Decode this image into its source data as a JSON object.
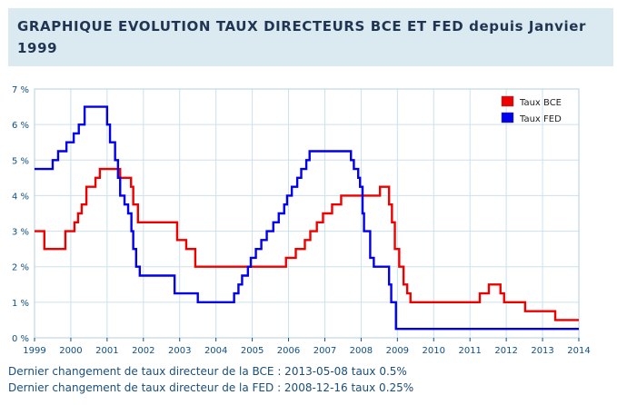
{
  "page_title": "GRAPHIQUE EVOLUTION TAUX DIRECTEURS BCE ET FED depuis Janvier 1999",
  "footer": {
    "bce_line": "Dernier changement de taux directeur de la BCE : 2013-05-08 taux 0.5%",
    "fed_line": "Dernier changement de taux directeur de la FED : 2008-12-16 taux 0.25%"
  },
  "chart_data": {
    "type": "line",
    "title": "",
    "xlabel": "",
    "ylabel": "",
    "xlim": [
      1999,
      2014
    ],
    "ylim": [
      0,
      7
    ],
    "x_ticks": [
      1999,
      2000,
      2001,
      2002,
      2003,
      2004,
      2005,
      2006,
      2007,
      2008,
      2009,
      2010,
      2011,
      2012,
      2013,
      2014
    ],
    "x_tick_labels": [
      "1999",
      "2000",
      "2001",
      "2002",
      "2003",
      "2004",
      "2005",
      "2006",
      "2007",
      "2008",
      "2009",
      "2010",
      "2011",
      "2012",
      "2013",
      "2014"
    ],
    "y_ticks": [
      0,
      1,
      2,
      3,
      4,
      5,
      6,
      7
    ],
    "y_tick_labels": [
      "0 %",
      "1 %",
      "2 %",
      "3 %",
      "4 %",
      "5 %",
      "6 %",
      "7 %"
    ],
    "grid": true,
    "legend_position": "top-right",
    "series": [
      {
        "name": "Taux BCE",
        "color": "#ee0000",
        "step": true,
        "points": [
          [
            1999.0,
            3.0
          ],
          [
            1999.27,
            2.5
          ],
          [
            1999.85,
            3.0
          ],
          [
            2000.1,
            3.25
          ],
          [
            2000.2,
            3.5
          ],
          [
            2000.3,
            3.75
          ],
          [
            2000.43,
            4.25
          ],
          [
            2000.68,
            4.5
          ],
          [
            2000.8,
            4.75
          ],
          [
            2001.36,
            4.5
          ],
          [
            2001.66,
            4.25
          ],
          [
            2001.72,
            3.75
          ],
          [
            2001.85,
            3.25
          ],
          [
            2002.93,
            2.75
          ],
          [
            2003.18,
            2.5
          ],
          [
            2003.43,
            2.0
          ],
          [
            2005.93,
            2.25
          ],
          [
            2006.2,
            2.5
          ],
          [
            2006.45,
            2.75
          ],
          [
            2006.6,
            3.0
          ],
          [
            2006.78,
            3.25
          ],
          [
            2006.95,
            3.5
          ],
          [
            2007.2,
            3.75
          ],
          [
            2007.45,
            4.0
          ],
          [
            2008.52,
            4.25
          ],
          [
            2008.77,
            3.75
          ],
          [
            2008.85,
            3.25
          ],
          [
            2008.93,
            2.5
          ],
          [
            2009.05,
            2.0
          ],
          [
            2009.17,
            1.5
          ],
          [
            2009.27,
            1.25
          ],
          [
            2009.36,
            1.0
          ],
          [
            2011.27,
            1.25
          ],
          [
            2011.52,
            1.5
          ],
          [
            2011.84,
            1.25
          ],
          [
            2011.94,
            1.0
          ],
          [
            2012.52,
            0.75
          ],
          [
            2013.35,
            0.5
          ],
          [
            2014.0,
            0.5
          ]
        ]
      },
      {
        "name": "Taux FED",
        "color": "#0000ee",
        "step": true,
        "points": [
          [
            1999.0,
            4.75
          ],
          [
            1999.5,
            5.0
          ],
          [
            1999.65,
            5.25
          ],
          [
            1999.88,
            5.5
          ],
          [
            2000.08,
            5.75
          ],
          [
            2000.22,
            6.0
          ],
          [
            2000.38,
            6.5
          ],
          [
            2001.0,
            6.0
          ],
          [
            2001.08,
            5.5
          ],
          [
            2001.22,
            5.0
          ],
          [
            2001.3,
            4.5
          ],
          [
            2001.36,
            4.0
          ],
          [
            2001.48,
            3.75
          ],
          [
            2001.58,
            3.5
          ],
          [
            2001.67,
            3.0
          ],
          [
            2001.72,
            2.5
          ],
          [
            2001.8,
            2.0
          ],
          [
            2001.9,
            1.75
          ],
          [
            2002.86,
            1.25
          ],
          [
            2003.5,
            1.0
          ],
          [
            2004.5,
            1.25
          ],
          [
            2004.62,
            1.5
          ],
          [
            2004.72,
            1.75
          ],
          [
            2004.88,
            2.0
          ],
          [
            2004.96,
            2.25
          ],
          [
            2005.1,
            2.5
          ],
          [
            2005.25,
            2.75
          ],
          [
            2005.4,
            3.0
          ],
          [
            2005.58,
            3.25
          ],
          [
            2005.73,
            3.5
          ],
          [
            2005.88,
            3.75
          ],
          [
            2005.96,
            4.0
          ],
          [
            2006.09,
            4.25
          ],
          [
            2006.24,
            4.5
          ],
          [
            2006.35,
            4.75
          ],
          [
            2006.49,
            5.0
          ],
          [
            2006.58,
            5.25
          ],
          [
            2007.72,
            5.0
          ],
          [
            2007.8,
            4.75
          ],
          [
            2007.92,
            4.5
          ],
          [
            2007.97,
            4.25
          ],
          [
            2008.04,
            3.5
          ],
          [
            2008.08,
            3.0
          ],
          [
            2008.25,
            2.25
          ],
          [
            2008.35,
            2.0
          ],
          [
            2008.77,
            1.5
          ],
          [
            2008.83,
            1.0
          ],
          [
            2008.96,
            0.25
          ],
          [
            2014.0,
            0.25
          ]
        ]
      }
    ]
  }
}
